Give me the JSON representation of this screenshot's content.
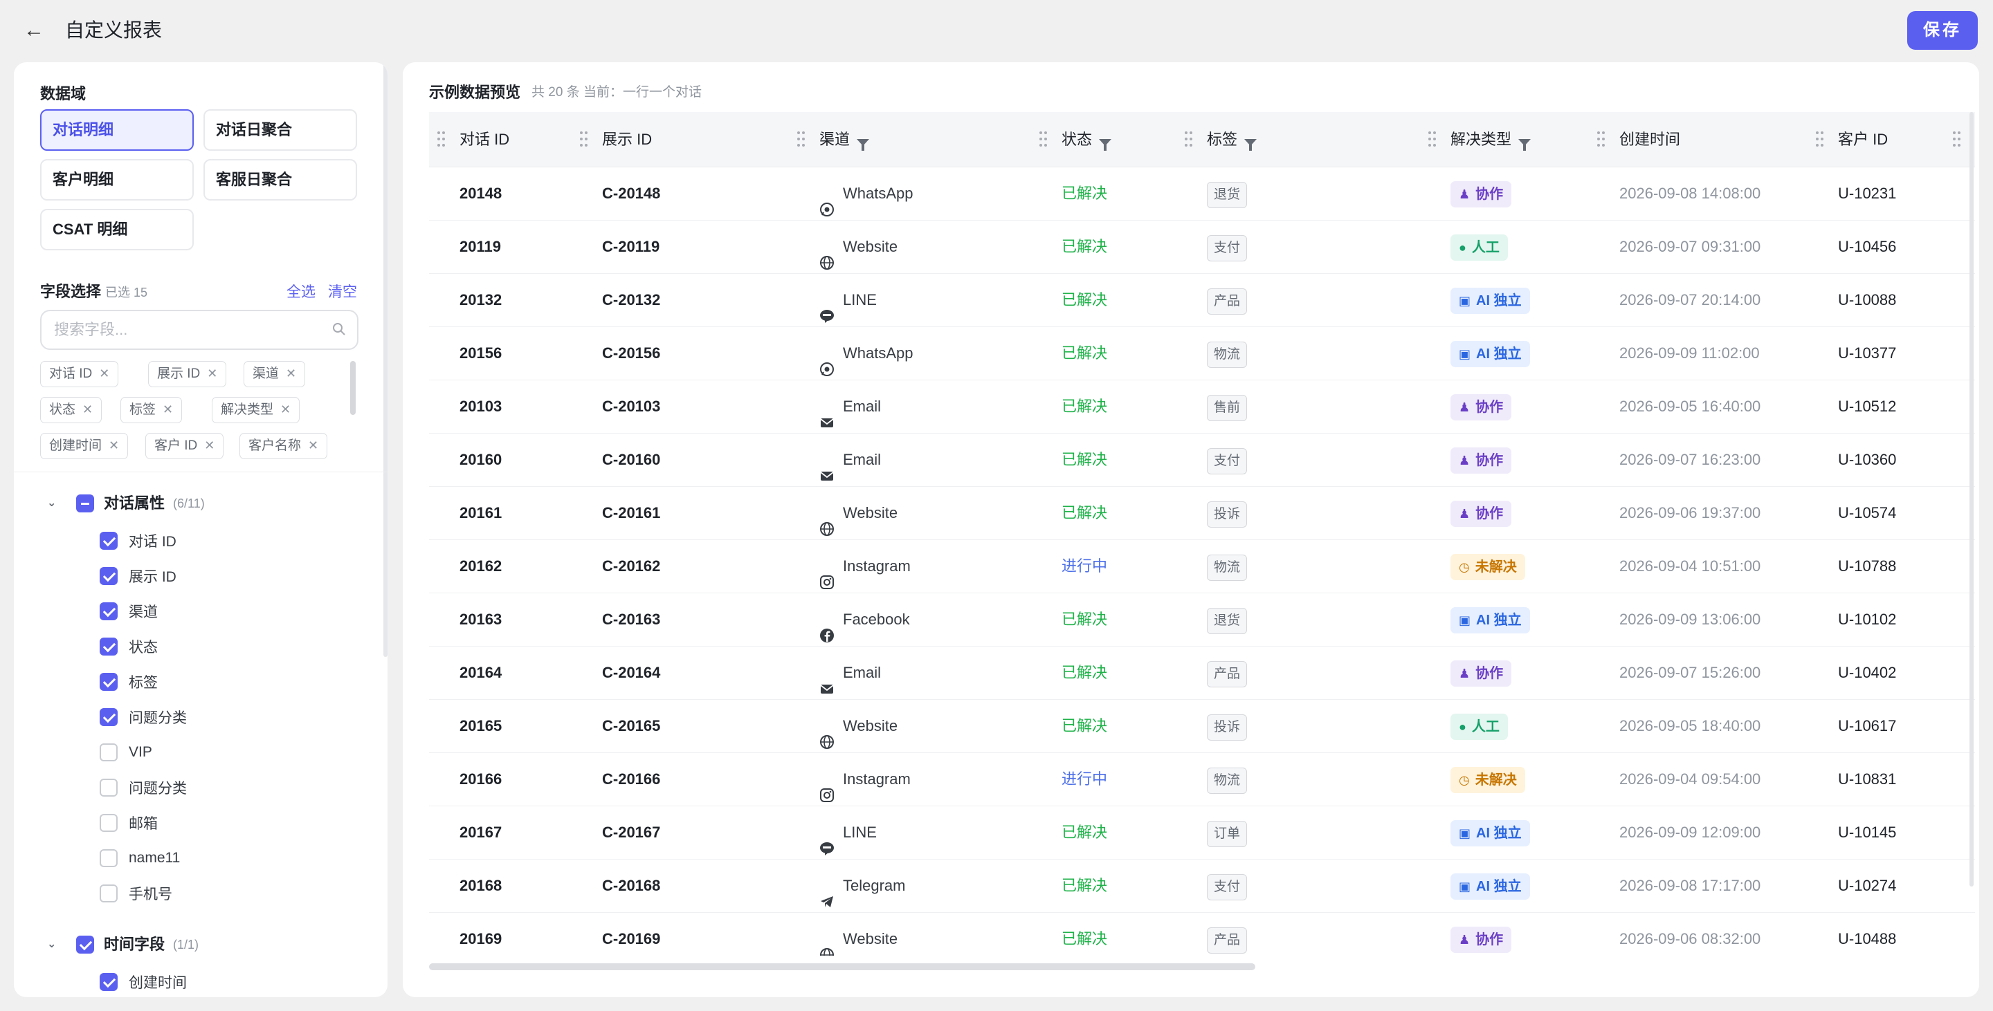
{
  "header": {
    "back_icon": "arrow-left-icon",
    "title": "自定义报表",
    "save_label": "保存"
  },
  "left": {
    "domain_label": "数据域",
    "domains": [
      "对话明细",
      "对话日聚合",
      "客户明细",
      "客服日聚合",
      "CSAT 明细"
    ],
    "active_domain": "对话明细",
    "field_select_label": "字段选择",
    "selected_count": "已选 15",
    "select_all": "全选",
    "clear": "清空",
    "search_placeholder": "搜索字段...",
    "chips": [
      "对话 ID",
      "展示 ID",
      "渠道",
      "状态",
      "标签",
      "解决类型",
      "创建时间",
      "客户 ID",
      "客户名称"
    ],
    "groups": [
      {
        "label": "对话属性",
        "count": "(6/11)",
        "state": "indeterminate",
        "fields": [
          {
            "label": "对话 ID",
            "checked": true
          },
          {
            "label": "展示 ID",
            "checked": true
          },
          {
            "label": "渠道",
            "checked": true
          },
          {
            "label": "状态",
            "checked": true
          },
          {
            "label": "标签",
            "checked": true
          },
          {
            "label": "问题分类",
            "checked": true
          },
          {
            "label": "VIP",
            "checked": false
          },
          {
            "label": "问题分类",
            "checked": false
          },
          {
            "label": "邮箱",
            "checked": false
          },
          {
            "label": "name11",
            "checked": false
          },
          {
            "label": "手机号",
            "checked": false
          }
        ]
      },
      {
        "label": "时间字段",
        "count": "(1/1)",
        "state": "checked",
        "fields": [
          {
            "label": "创建时间",
            "checked": true
          }
        ]
      }
    ]
  },
  "preview": {
    "title": "示例数据预览",
    "meta": "共 20 条   当前：一行一个对话",
    "columns": [
      "对话 ID",
      "展示 ID",
      "渠道",
      "状态",
      "标签",
      "解决类型",
      "创建时间",
      "客户 ID"
    ],
    "rows": [
      {
        "id": "20148",
        "disp": "C-20148",
        "channel": "WhatsApp",
        "status": "已解决",
        "tag": "退货",
        "res": "协作",
        "time": "2026-09-08 14:08:00",
        "cust": "U-10231"
      },
      {
        "id": "20119",
        "disp": "C-20119",
        "channel": "Website",
        "status": "已解决",
        "tag": "支付",
        "res": "人工",
        "time": "2026-09-07 09:31:00",
        "cust": "U-10456"
      },
      {
        "id": "20132",
        "disp": "C-20132",
        "channel": "LINE",
        "status": "已解决",
        "tag": "产品",
        "res": "AI 独立",
        "time": "2026-09-07 20:14:00",
        "cust": "U-10088"
      },
      {
        "id": "20156",
        "disp": "C-20156",
        "channel": "WhatsApp",
        "status": "已解决",
        "tag": "物流",
        "res": "AI 独立",
        "time": "2026-09-09 11:02:00",
        "cust": "U-10377"
      },
      {
        "id": "20103",
        "disp": "C-20103",
        "channel": "Email",
        "status": "已解决",
        "tag": "售前",
        "res": "协作",
        "time": "2026-09-05 16:40:00",
        "cust": "U-10512"
      },
      {
        "id": "20160",
        "disp": "C-20160",
        "channel": "Email",
        "status": "已解决",
        "tag": "支付",
        "res": "协作",
        "time": "2026-09-07 16:23:00",
        "cust": "U-10360"
      },
      {
        "id": "20161",
        "disp": "C-20161",
        "channel": "Website",
        "status": "已解决",
        "tag": "投诉",
        "res": "协作",
        "time": "2026-09-06 19:37:00",
        "cust": "U-10574"
      },
      {
        "id": "20162",
        "disp": "C-20162",
        "channel": "Instagram",
        "status": "进行中",
        "tag": "物流",
        "res": "未解决",
        "time": "2026-09-04 10:51:00",
        "cust": "U-10788"
      },
      {
        "id": "20163",
        "disp": "C-20163",
        "channel": "Facebook",
        "status": "已解决",
        "tag": "退货",
        "res": "AI 独立",
        "time": "2026-09-09 13:06:00",
        "cust": "U-10102"
      },
      {
        "id": "20164",
        "disp": "C-20164",
        "channel": "Email",
        "status": "已解决",
        "tag": "产品",
        "res": "协作",
        "time": "2026-09-07 15:26:00",
        "cust": "U-10402"
      },
      {
        "id": "20165",
        "disp": "C-20165",
        "channel": "Website",
        "status": "已解决",
        "tag": "投诉",
        "res": "人工",
        "time": "2026-09-05 18:40:00",
        "cust": "U-10617"
      },
      {
        "id": "20166",
        "disp": "C-20166",
        "channel": "Instagram",
        "status": "进行中",
        "tag": "物流",
        "res": "未解决",
        "time": "2026-09-04 09:54:00",
        "cust": "U-10831"
      },
      {
        "id": "20167",
        "disp": "C-20167",
        "channel": "LINE",
        "status": "已解决",
        "tag": "订单",
        "res": "AI 独立",
        "time": "2026-09-09 12:09:00",
        "cust": "U-10145"
      },
      {
        "id": "20168",
        "disp": "C-20168",
        "channel": "Telegram",
        "status": "已解决",
        "tag": "支付",
        "res": "AI 独立",
        "time": "2026-09-08 17:17:00",
        "cust": "U-10274"
      },
      {
        "id": "20169",
        "disp": "C-20169",
        "channel": "Website",
        "status": "已解决",
        "tag": "产品",
        "res": "协作",
        "time": "2026-09-06 08:32:00",
        "cust": "U-10488"
      }
    ]
  },
  "colors": {
    "accent": "#5b5ff0",
    "resolved": "#1fb34a",
    "in_progress": "#4c6fe8"
  }
}
